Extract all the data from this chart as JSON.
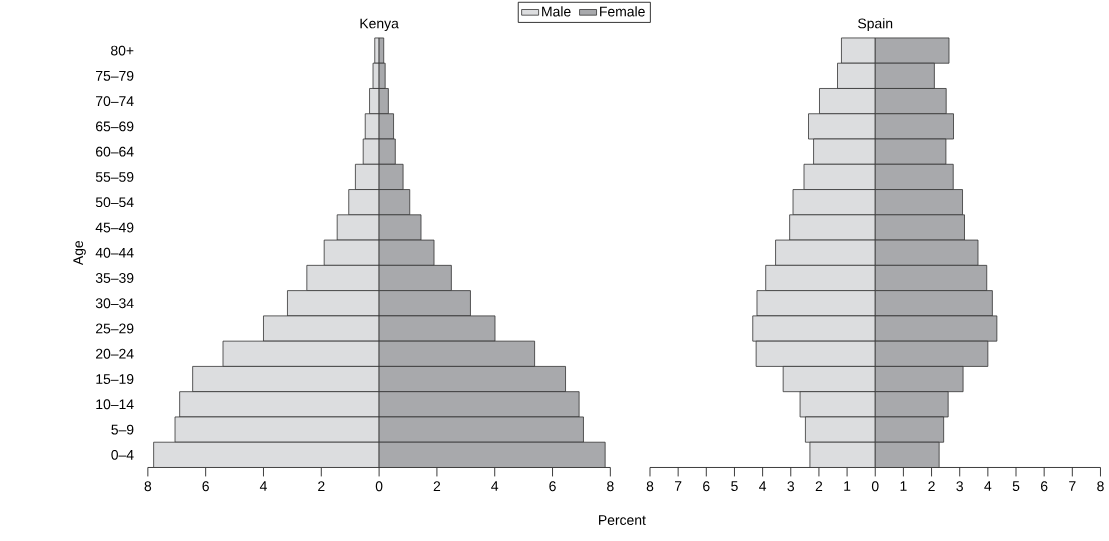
{
  "chart_data": [
    {
      "type": "bar",
      "orientation": "horizontal",
      "stacked": true,
      "title": "Kenya",
      "xlabel": "Percent",
      "ylabel": "Age",
      "categories": [
        "80+",
        "75–79",
        "70–74",
        "65–69",
        "60–64",
        "55–59",
        "50–54",
        "45–49",
        "40–44",
        "35–39",
        "30–34",
        "25–29",
        "20–24",
        "15–19",
        "10–14",
        "5–9",
        "0–4"
      ],
      "series": [
        {
          "name": "Male",
          "color": "#dcdddf",
          "values": [
            -0.15,
            -0.21,
            -0.33,
            -0.48,
            -0.55,
            -0.82,
            -1.05,
            -1.45,
            -1.9,
            -2.5,
            -3.17,
            -4.0,
            -5.4,
            -6.45,
            -6.9,
            -7.06,
            -7.8
          ]
        },
        {
          "name": "Female",
          "color": "#a8a9ac",
          "values": [
            0.16,
            0.21,
            0.32,
            0.5,
            0.56,
            0.83,
            1.06,
            1.45,
            1.9,
            2.5,
            3.16,
            4.01,
            5.38,
            6.45,
            6.92,
            7.07,
            7.82
          ]
        }
      ],
      "xlim": [
        -8,
        8
      ],
      "xticks": [
        {
          "value": -8,
          "label": "8"
        },
        {
          "value": -6,
          "label": "6"
        },
        {
          "value": -4,
          "label": "4"
        },
        {
          "value": -2,
          "label": "2"
        },
        0,
        2,
        4,
        6,
        8
      ],
      "legend": "top right"
    },
    {
      "type": "bar",
      "orientation": "horizontal",
      "stacked": true,
      "title": "Spain",
      "categories": [
        null,
        null,
        null,
        null,
        null,
        null,
        null,
        null,
        null,
        null,
        null,
        null,
        null,
        null,
        null,
        null,
        null
      ],
      "series": [
        {
          "color": "#dcdddf",
          "values": [
            -1.2,
            -1.34,
            -1.98,
            -2.37,
            -2.19,
            -2.53,
            -2.92,
            -3.04,
            -3.54,
            -3.89,
            -4.2,
            -4.35,
            -4.23,
            -3.27,
            -2.67,
            -2.48,
            -2.32
          ]
        },
        {
          "color": "#a8a9ac",
          "values": [
            2.62,
            2.1,
            2.52,
            2.78,
            2.51,
            2.77,
            3.1,
            3.17,
            3.65,
            3.96,
            4.16,
            4.32,
            4.0,
            3.12,
            2.59,
            2.43,
            2.27
          ]
        }
      ],
      "xlim": [
        -8,
        8
      ],
      "xticks": [
        {
          "value": -8,
          "label": "8"
        },
        {
          "value": -7,
          "label": "7"
        },
        {
          "value": -6,
          "label": "6"
        },
        {
          "value": -5,
          "label": "5"
        },
        {
          "value": -4,
          "label": "4"
        },
        {
          "value": -3,
          "label": "3"
        },
        {
          "value": -2,
          "label": "2"
        },
        {
          "value": -1,
          "label": "1"
        },
        0,
        1,
        2,
        3,
        4,
        5,
        6,
        7,
        8
      ],
      "tick_labels": "x"
    }
  ]
}
